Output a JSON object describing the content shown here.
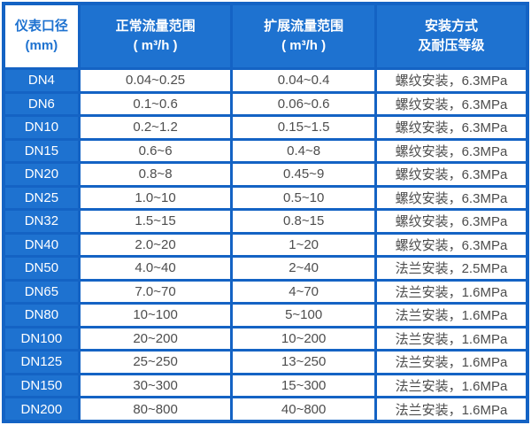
{
  "colors": {
    "primary_blue": "#1E72D0",
    "border_blue": "#1463C4",
    "header_text": "#FFFFFF",
    "first_header_text": "#1E72D0",
    "data_text": "#4D4D4D"
  },
  "table": {
    "headers": [
      {
        "line1": "仪表口径",
        "line2": "(mm)"
      },
      {
        "line1": "正常流量范围",
        "line2": "( m³/h )"
      },
      {
        "line1": "扩展流量范围",
        "line2": "( m³/h )"
      },
      {
        "line1": "安装方式",
        "line2": "及耐压等级"
      }
    ],
    "rows": [
      [
        "DN4",
        "0.04~0.25",
        "0.04~0.4",
        "螺纹安装，6.3MPa"
      ],
      [
        "DN6",
        "0.1~0.6",
        "0.06~0.6",
        "螺纹安装，6.3MPa"
      ],
      [
        "DN10",
        "0.2~1.2",
        "0.15~1.5",
        "螺纹安装，6.3MPa"
      ],
      [
        "DN15",
        "0.6~6",
        "0.4~8",
        "螺纹安装，6.3MPa"
      ],
      [
        "DN20",
        "0.8~8",
        "0.45~9",
        "螺纹安装，6.3MPa"
      ],
      [
        "DN25",
        "1.0~10",
        "0.5~10",
        "螺纹安装，6.3MPa"
      ],
      [
        "DN32",
        "1.5~15",
        "0.8~15",
        "螺纹安装，6.3MPa"
      ],
      [
        "DN40",
        "2.0~20",
        "1~20",
        "螺纹安装，6.3MPa"
      ],
      [
        "DN50",
        "4.0~40",
        "2~40",
        "法兰安装，2.5MPa"
      ],
      [
        "DN65",
        "7.0~70",
        "4~70",
        "法兰安装，1.6MPa"
      ],
      [
        "DN80",
        "10~100",
        "5~100",
        "法兰安装，1.6MPa"
      ],
      [
        "DN100",
        "20~200",
        "10~200",
        "法兰安装，1.6MPa"
      ],
      [
        "DN125",
        "25~250",
        "13~250",
        "法兰安装，1.6MPa"
      ],
      [
        "DN150",
        "30~300",
        "15~300",
        "法兰安装，1.6MPa"
      ],
      [
        "DN200",
        "80~800",
        "40~800",
        "法兰安装，1.6MPa"
      ]
    ]
  },
  "chart_data": {
    "type": "table",
    "columns": [
      "仪表口径 (mm)",
      "正常流量范围 ( m³/h )",
      "扩展流量范围 ( m³/h )",
      "安装方式 及耐压等级"
    ],
    "rows": [
      [
        "DN4",
        "0.04~0.25",
        "0.04~0.4",
        "螺纹安装，6.3MPa"
      ],
      [
        "DN6",
        "0.1~0.6",
        "0.06~0.6",
        "螺纹安装，6.3MPa"
      ],
      [
        "DN10",
        "0.2~1.2",
        "0.15~1.5",
        "螺纹安装，6.3MPa"
      ],
      [
        "DN15",
        "0.6~6",
        "0.4~8",
        "螺纹安装，6.3MPa"
      ],
      [
        "DN20",
        "0.8~8",
        "0.45~9",
        "螺纹安装，6.3MPa"
      ],
      [
        "DN25",
        "1.0~10",
        "0.5~10",
        "螺纹安装，6.3MPa"
      ],
      [
        "DN32",
        "1.5~15",
        "0.8~15",
        "螺纹安装，6.3MPa"
      ],
      [
        "DN40",
        "2.0~20",
        "1~20",
        "螺纹安装，6.3MPa"
      ],
      [
        "DN50",
        "4.0~40",
        "2~40",
        "法兰安装，2.5MPa"
      ],
      [
        "DN65",
        "7.0~70",
        "4~70",
        "法兰安装，1.6MPa"
      ],
      [
        "DN80",
        "10~100",
        "5~100",
        "法兰安装，1.6MPa"
      ],
      [
        "DN100",
        "20~200",
        "10~200",
        "法兰安装，1.6MPa"
      ],
      [
        "DN125",
        "25~250",
        "13~250",
        "法兰安装，1.6MPa"
      ],
      [
        "DN150",
        "30~300",
        "15~300",
        "法兰安装，1.6MPa"
      ],
      [
        "DN200",
        "80~800",
        "40~800",
        "法兰安装，1.6MPa"
      ]
    ]
  }
}
